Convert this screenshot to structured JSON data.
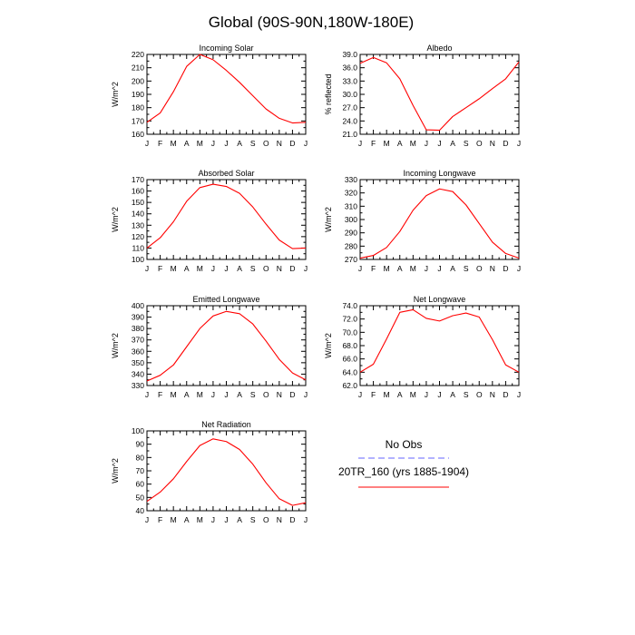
{
  "figure_title": "Global (90S-90N,180W-180E)",
  "legend": {
    "entries": [
      {
        "label": "No Obs",
        "color": "#6666ff",
        "style": "dashed"
      },
      {
        "label": "20TR_160 (yrs 1885-1904)",
        "color": "#ff0000",
        "style": "solid"
      }
    ]
  },
  "chart_data": [
    {
      "type": "line",
      "title": "Incoming Solar",
      "ylabel": "W/m^2",
      "categories": [
        "J",
        "F",
        "M",
        "A",
        "M",
        "J",
        "J",
        "A",
        "S",
        "O",
        "N",
        "D",
        "J"
      ],
      "ylim": [
        160,
        220
      ],
      "yticks": [
        "160",
        "170",
        "180",
        "190",
        "200",
        "210",
        "220"
      ],
      "series": [
        {
          "name": "20TR_160 (yrs 1885-1904)",
          "color": "#ff0000",
          "values": [
            169,
            176,
            192,
            211,
            220,
            216,
            208,
            199,
            189,
            179,
            172,
            168.5,
            169
          ]
        }
      ]
    },
    {
      "type": "line",
      "title": "Albedo",
      "ylabel": "% reflected",
      "categories": [
        "J",
        "F",
        "M",
        "A",
        "M",
        "J",
        "J",
        "A",
        "S",
        "O",
        "N",
        "D",
        "J"
      ],
      "ylim": [
        21,
        39
      ],
      "yticks": [
        "21.0",
        "24.0",
        "27.0",
        "30.0",
        "33.0",
        "36.0",
        "39.0"
      ],
      "series": [
        {
          "name": "20TR_160 (yrs 1885-1904)",
          "color": "#ff0000",
          "values": [
            37.0,
            38.3,
            37.1,
            33.5,
            27.5,
            22.0,
            21.9,
            25.0,
            27.0,
            29.0,
            31.3,
            33.5,
            37.3
          ]
        }
      ]
    },
    {
      "type": "line",
      "title": "Absorbed Solar",
      "ylabel": "W/m^2",
      "categories": [
        "J",
        "F",
        "M",
        "A",
        "M",
        "J",
        "J",
        "A",
        "S",
        "O",
        "N",
        "D",
        "J"
      ],
      "ylim": [
        100,
        170
      ],
      "yticks": [
        "100",
        "110",
        "120",
        "130",
        "140",
        "150",
        "160",
        "170"
      ],
      "series": [
        {
          "name": "20TR_160 (yrs 1885-1904)",
          "color": "#ff0000",
          "values": [
            110,
            119,
            133,
            151,
            163,
            166,
            164,
            158,
            146,
            131,
            117,
            109.5,
            110
          ]
        }
      ]
    },
    {
      "type": "line",
      "title": "Incoming Longwave",
      "ylabel": "W/m^2",
      "categories": [
        "J",
        "F",
        "M",
        "A",
        "M",
        "J",
        "J",
        "A",
        "S",
        "O",
        "N",
        "D",
        "J"
      ],
      "ylim": [
        270,
        330
      ],
      "yticks": [
        "270",
        "280",
        "290",
        "300",
        "310",
        "320",
        "330"
      ],
      "series": [
        {
          "name": "20TR_160 (yrs 1885-1904)",
          "color": "#ff0000",
          "values": [
            271,
            273,
            279,
            291,
            307,
            318,
            323,
            321,
            311,
            297,
            283,
            274.5,
            271
          ]
        }
      ]
    },
    {
      "type": "line",
      "title": "Emitted Longwave",
      "ylabel": "W/m^2",
      "categories": [
        "J",
        "F",
        "M",
        "A",
        "M",
        "J",
        "J",
        "A",
        "S",
        "O",
        "N",
        "D",
        "J"
      ],
      "ylim": [
        330,
        400
      ],
      "yticks": [
        "330",
        "340",
        "350",
        "360",
        "370",
        "380",
        "390",
        "400"
      ],
      "series": [
        {
          "name": "20TR_160 (yrs 1885-1904)",
          "color": "#ff0000",
          "values": [
            334,
            339,
            348,
            364,
            380,
            391,
            395,
            393,
            384,
            369,
            353,
            341,
            335
          ]
        }
      ]
    },
    {
      "type": "line",
      "title": "Net Longwave",
      "ylabel": "W/m^2",
      "categories": [
        "J",
        "F",
        "M",
        "A",
        "M",
        "J",
        "J",
        "A",
        "S",
        "O",
        "N",
        "D",
        "J"
      ],
      "ylim": [
        62,
        74
      ],
      "yticks": [
        "62.0",
        "64.0",
        "66.0",
        "68.0",
        "70.0",
        "72.0",
        "74.0"
      ],
      "series": [
        {
          "name": "20TR_160 (yrs 1885-1904)",
          "color": "#ff0000",
          "values": [
            64.0,
            65.2,
            69.0,
            73.0,
            73.4,
            72.1,
            71.7,
            72.5,
            72.9,
            72.3,
            68.9,
            65.1,
            64.0
          ]
        }
      ]
    },
    {
      "type": "line",
      "title": "Net Radiation",
      "ylabel": "W/m^2",
      "categories": [
        "J",
        "F",
        "M",
        "A",
        "M",
        "J",
        "J",
        "A",
        "S",
        "O",
        "N",
        "D",
        "J"
      ],
      "ylim": [
        40,
        100
      ],
      "yticks": [
        "40",
        "50",
        "60",
        "70",
        "80",
        "90",
        "100"
      ],
      "series": [
        {
          "name": "20TR_160 (yrs 1885-1904)",
          "color": "#ff0000",
          "values": [
            47,
            54,
            64,
            77,
            89,
            94,
            92,
            86,
            75,
            61,
            49,
            44,
            46
          ]
        }
      ]
    }
  ]
}
